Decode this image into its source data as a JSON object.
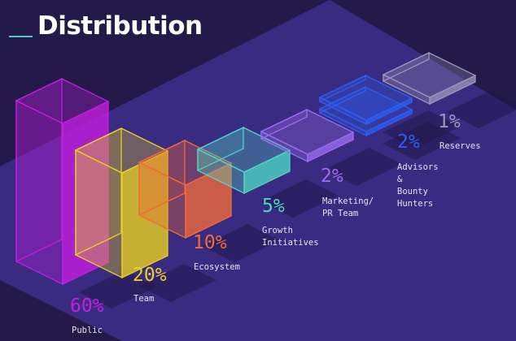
{
  "title": "Distribution",
  "chart_data": {
    "type": "bar",
    "style": "isometric-3d",
    "title": "Distribution",
    "categories": [
      "Public",
      "Team",
      "Ecosystem",
      "Growth\nInitiatives",
      "Marketing/\nPR Team",
      "Advisors\n&\nBounty\nHunters",
      "Reserves"
    ],
    "values": [
      60,
      20,
      10,
      5,
      2,
      2,
      1
    ],
    "value_labels": [
      "60%",
      "20%",
      "10%",
      "5%",
      "2%",
      "2%",
      "1%"
    ],
    "colors": [
      "#c41ee0",
      "#e9d21f",
      "#f06a3a",
      "#4fd6c2",
      "#9b6cf0",
      "#2c5ef0",
      "#9c94b8"
    ],
    "grid": false,
    "legend": "none"
  }
}
